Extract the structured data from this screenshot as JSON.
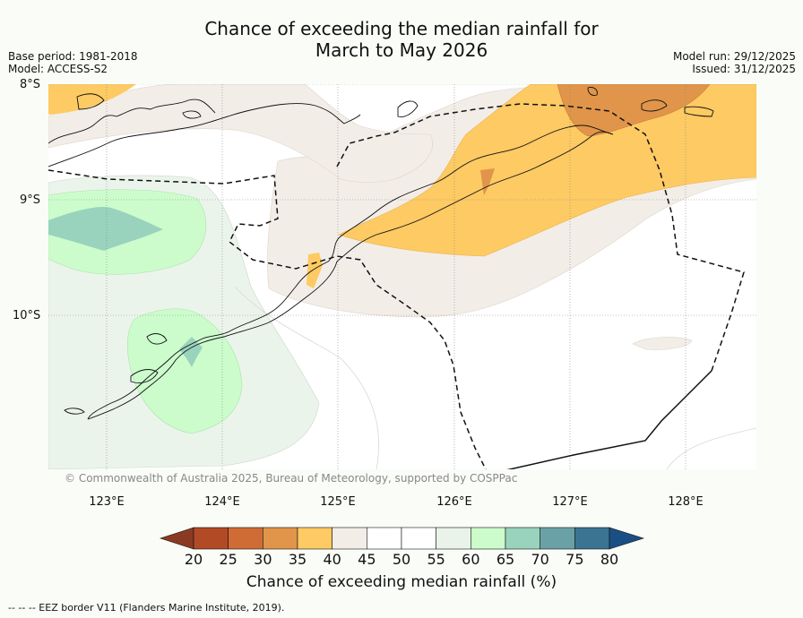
{
  "title_line1": "Chance of exceeding the median rainfall for",
  "title_line2": "March to May 2026",
  "base_period": "Base period: 1981-2018",
  "model": "Model: ACCESS-S2",
  "model_run": "Model run: 29/12/2025",
  "issued": "Issued: 31/12/2025",
  "lat_labels": [
    "8°S",
    "9°S",
    "10°S"
  ],
  "lon_labels": [
    "123°E",
    "124°E",
    "125°E",
    "126°E",
    "127°E",
    "128°E"
  ],
  "copyright": "© Commonwealth of Australia 2025, Bureau of Meteorology, supported by COSPPac",
  "colorbar": {
    "ticks": [
      "20",
      "25",
      "30",
      "35",
      "40",
      "45",
      "50",
      "55",
      "60",
      "65",
      "70",
      "75",
      "80"
    ],
    "colors": [
      "#8b3a22",
      "#b34a26",
      "#cf6b35",
      "#e0954a",
      "#fdca63",
      "#f3ede8",
      "#ffffff",
      "#ffffff",
      "#eaf3ea",
      "#ccfccc",
      "#99d3bd",
      "#6aa1a6",
      "#3a7492",
      "#1a4f84"
    ],
    "title": "Chance of exceeding median rainfall (%)"
  },
  "footer": "--  --  -- EEZ border V11 (Flanders Marine Institute, 2019)."
}
